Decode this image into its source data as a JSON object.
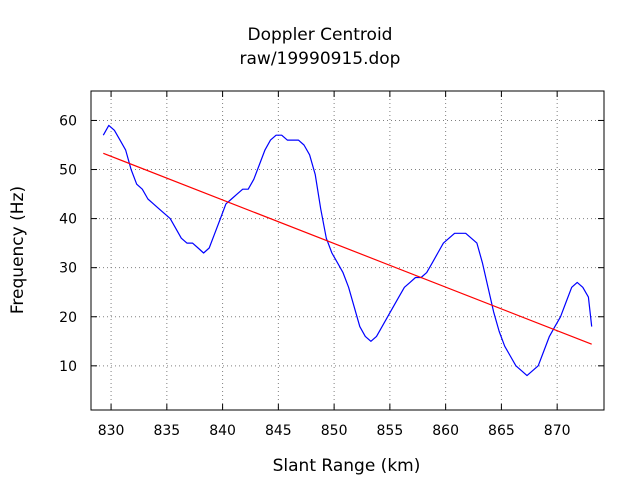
{
  "chart_data": {
    "type": "line",
    "title": "Doppler Centroid",
    "subtitle": "raw/19990915.dop",
    "xlabel": "Slant Range (km)",
    "ylabel": "Frequency (Hz)",
    "xlim": [
      828.2,
      874.2
    ],
    "ylim": [
      1,
      66
    ],
    "xticks": [
      830,
      835,
      840,
      845,
      850,
      855,
      860,
      865,
      870
    ],
    "yticks": [
      10,
      20,
      30,
      40,
      50,
      60
    ],
    "grid": true,
    "legend": "none",
    "series": [
      {
        "color": "#0000ff",
        "x": [
          829.3,
          829.8,
          830.3,
          830.8,
          831.3,
          831.8,
          832.3,
          832.8,
          833.3,
          833.8,
          834.3,
          834.8,
          835.3,
          835.8,
          836.3,
          836.8,
          837.3,
          837.8,
          838.3,
          838.8,
          839.3,
          839.8,
          840.3,
          840.8,
          841.3,
          841.8,
          842.3,
          842.8,
          843.3,
          843.8,
          844.3,
          844.8,
          845.3,
          845.8,
          846.3,
          846.8,
          847.3,
          847.8,
          848.3,
          848.8,
          849.3,
          849.8,
          850.3,
          850.8,
          851.3,
          851.8,
          852.3,
          852.8,
          853.3,
          853.8,
          854.3,
          854.8,
          855.3,
          855.8,
          856.3,
          856.8,
          857.3,
          857.8,
          858.3,
          858.8,
          859.3,
          859.8,
          860.3,
          860.8,
          861.3,
          861.8,
          862.3,
          862.8,
          863.3,
          863.8,
          864.3,
          864.8,
          865.3,
          865.8,
          866.3,
          866.8,
          867.3,
          867.8,
          868.3,
          868.8,
          869.3,
          869.8,
          870.3,
          870.8,
          871.3,
          871.8,
          872.3,
          872.8,
          873.1
        ],
        "y": [
          57,
          59,
          58,
          56,
          54,
          50,
          47,
          46,
          44,
          43,
          42,
          41,
          40,
          38,
          36,
          35,
          35,
          34,
          33,
          34,
          37,
          40,
          43,
          44,
          45,
          46,
          46,
          48,
          51,
          54,
          56,
          57,
          57,
          56,
          56,
          56,
          55,
          53,
          49,
          42,
          36,
          33,
          31,
          29,
          26,
          22,
          18,
          16,
          15,
          16,
          18,
          20,
          22,
          24,
          26,
          27,
          28,
          28,
          29,
          31,
          33,
          35,
          36,
          37,
          37,
          37,
          36,
          35,
          31,
          26,
          21,
          17,
          14,
          12,
          10,
          9,
          8,
          9,
          10,
          13,
          16,
          18,
          20,
          23,
          26,
          27,
          26,
          24,
          18
        ]
      },
      {
        "color": "#ff0000",
        "x": [
          829.3,
          873.1
        ],
        "y": [
          53.3,
          14.4
        ]
      }
    ]
  }
}
